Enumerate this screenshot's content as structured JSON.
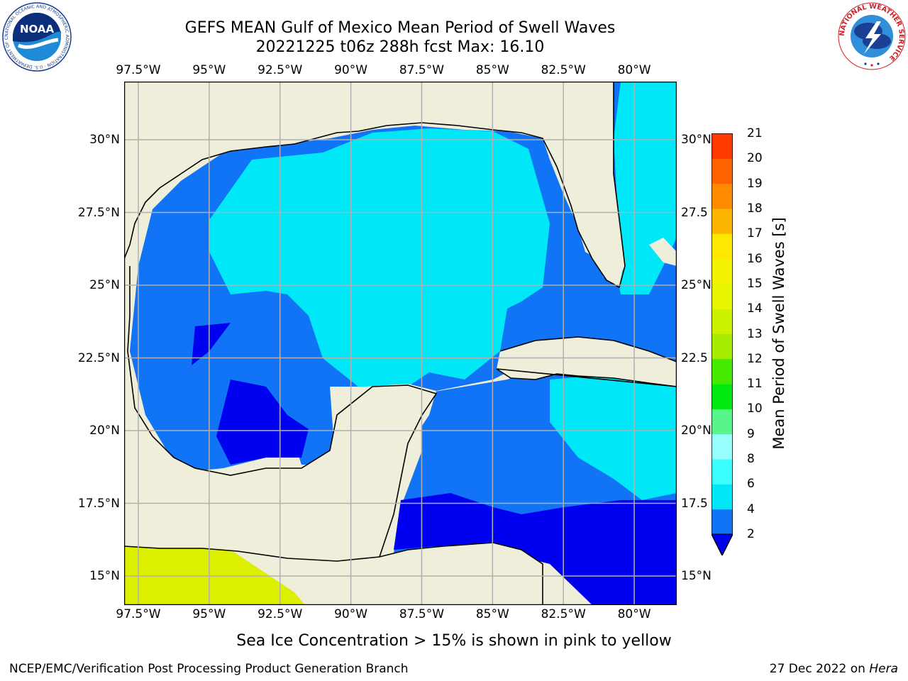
{
  "title": {
    "line1": "GEFS MEAN Gulf of Mexico Mean Period of Swell Waves",
    "line2": "20221225 t06z 288h fcst   Max: 16.10"
  },
  "map": {
    "region": "Gulf of Mexico",
    "lon_range": [
      -98,
      -78.5
    ],
    "lat_range": [
      14,
      32
    ],
    "lon_ticks": [
      "97.5°W",
      "95°W",
      "92.5°W",
      "90°W",
      "87.5°W",
      "85°W",
      "82.5°W",
      "80°W"
    ],
    "lat_ticks_left": [
      "30°N",
      "27.5°N",
      "25°N",
      "22.5°N",
      "20°N",
      "17.5°N",
      "15°N"
    ],
    "lat_ticks_right": [
      "30°N",
      "27.5",
      "25°N",
      "22.5",
      "20°N",
      "17.5",
      "15°N"
    ],
    "colors": {
      "land": "#efeedb",
      "gridline": "#b0b0b0",
      "coastline": "#000000",
      "sea_ice": "#ddf000"
    }
  },
  "colorbar": {
    "label": "Mean Period of Swell Waves [s]",
    "ticks": [
      "2",
      "4",
      "6",
      "8",
      "9",
      "10",
      "11",
      "12",
      "13",
      "14",
      "15",
      "16",
      "17",
      "18",
      "19",
      "20",
      "21"
    ],
    "colors": [
      "#1173f5",
      "#00e8f8",
      "#3cffff",
      "#98ffff",
      "#58f58a",
      "#00e80f",
      "#46ea00",
      "#a6ec00",
      "#cdf200",
      "#e8f600",
      "#f4f400",
      "#fee800",
      "#fdb600",
      "#fe8a00",
      "#ff6300",
      "#ff3900",
      "#ff1400"
    ],
    "extend_color": "#0000f0"
  },
  "footnote": "Sea Ice Concentration > 15% is shown in pink to yellow",
  "footer": {
    "left": "NCEP/EMC/Verification Post Processing Product Generation Branch",
    "date": "27 Dec 2022 on ",
    "host": "Hera"
  },
  "logos": {
    "noaa": "NOAA",
    "noaa_ring": "NATIONAL OCEANIC AND ATMOSPHERIC ADMINISTRATION · U.S. DEPARTMENT OF COMMERCE",
    "nws_ring": "NATIONAL WEATHER SERVICE"
  }
}
